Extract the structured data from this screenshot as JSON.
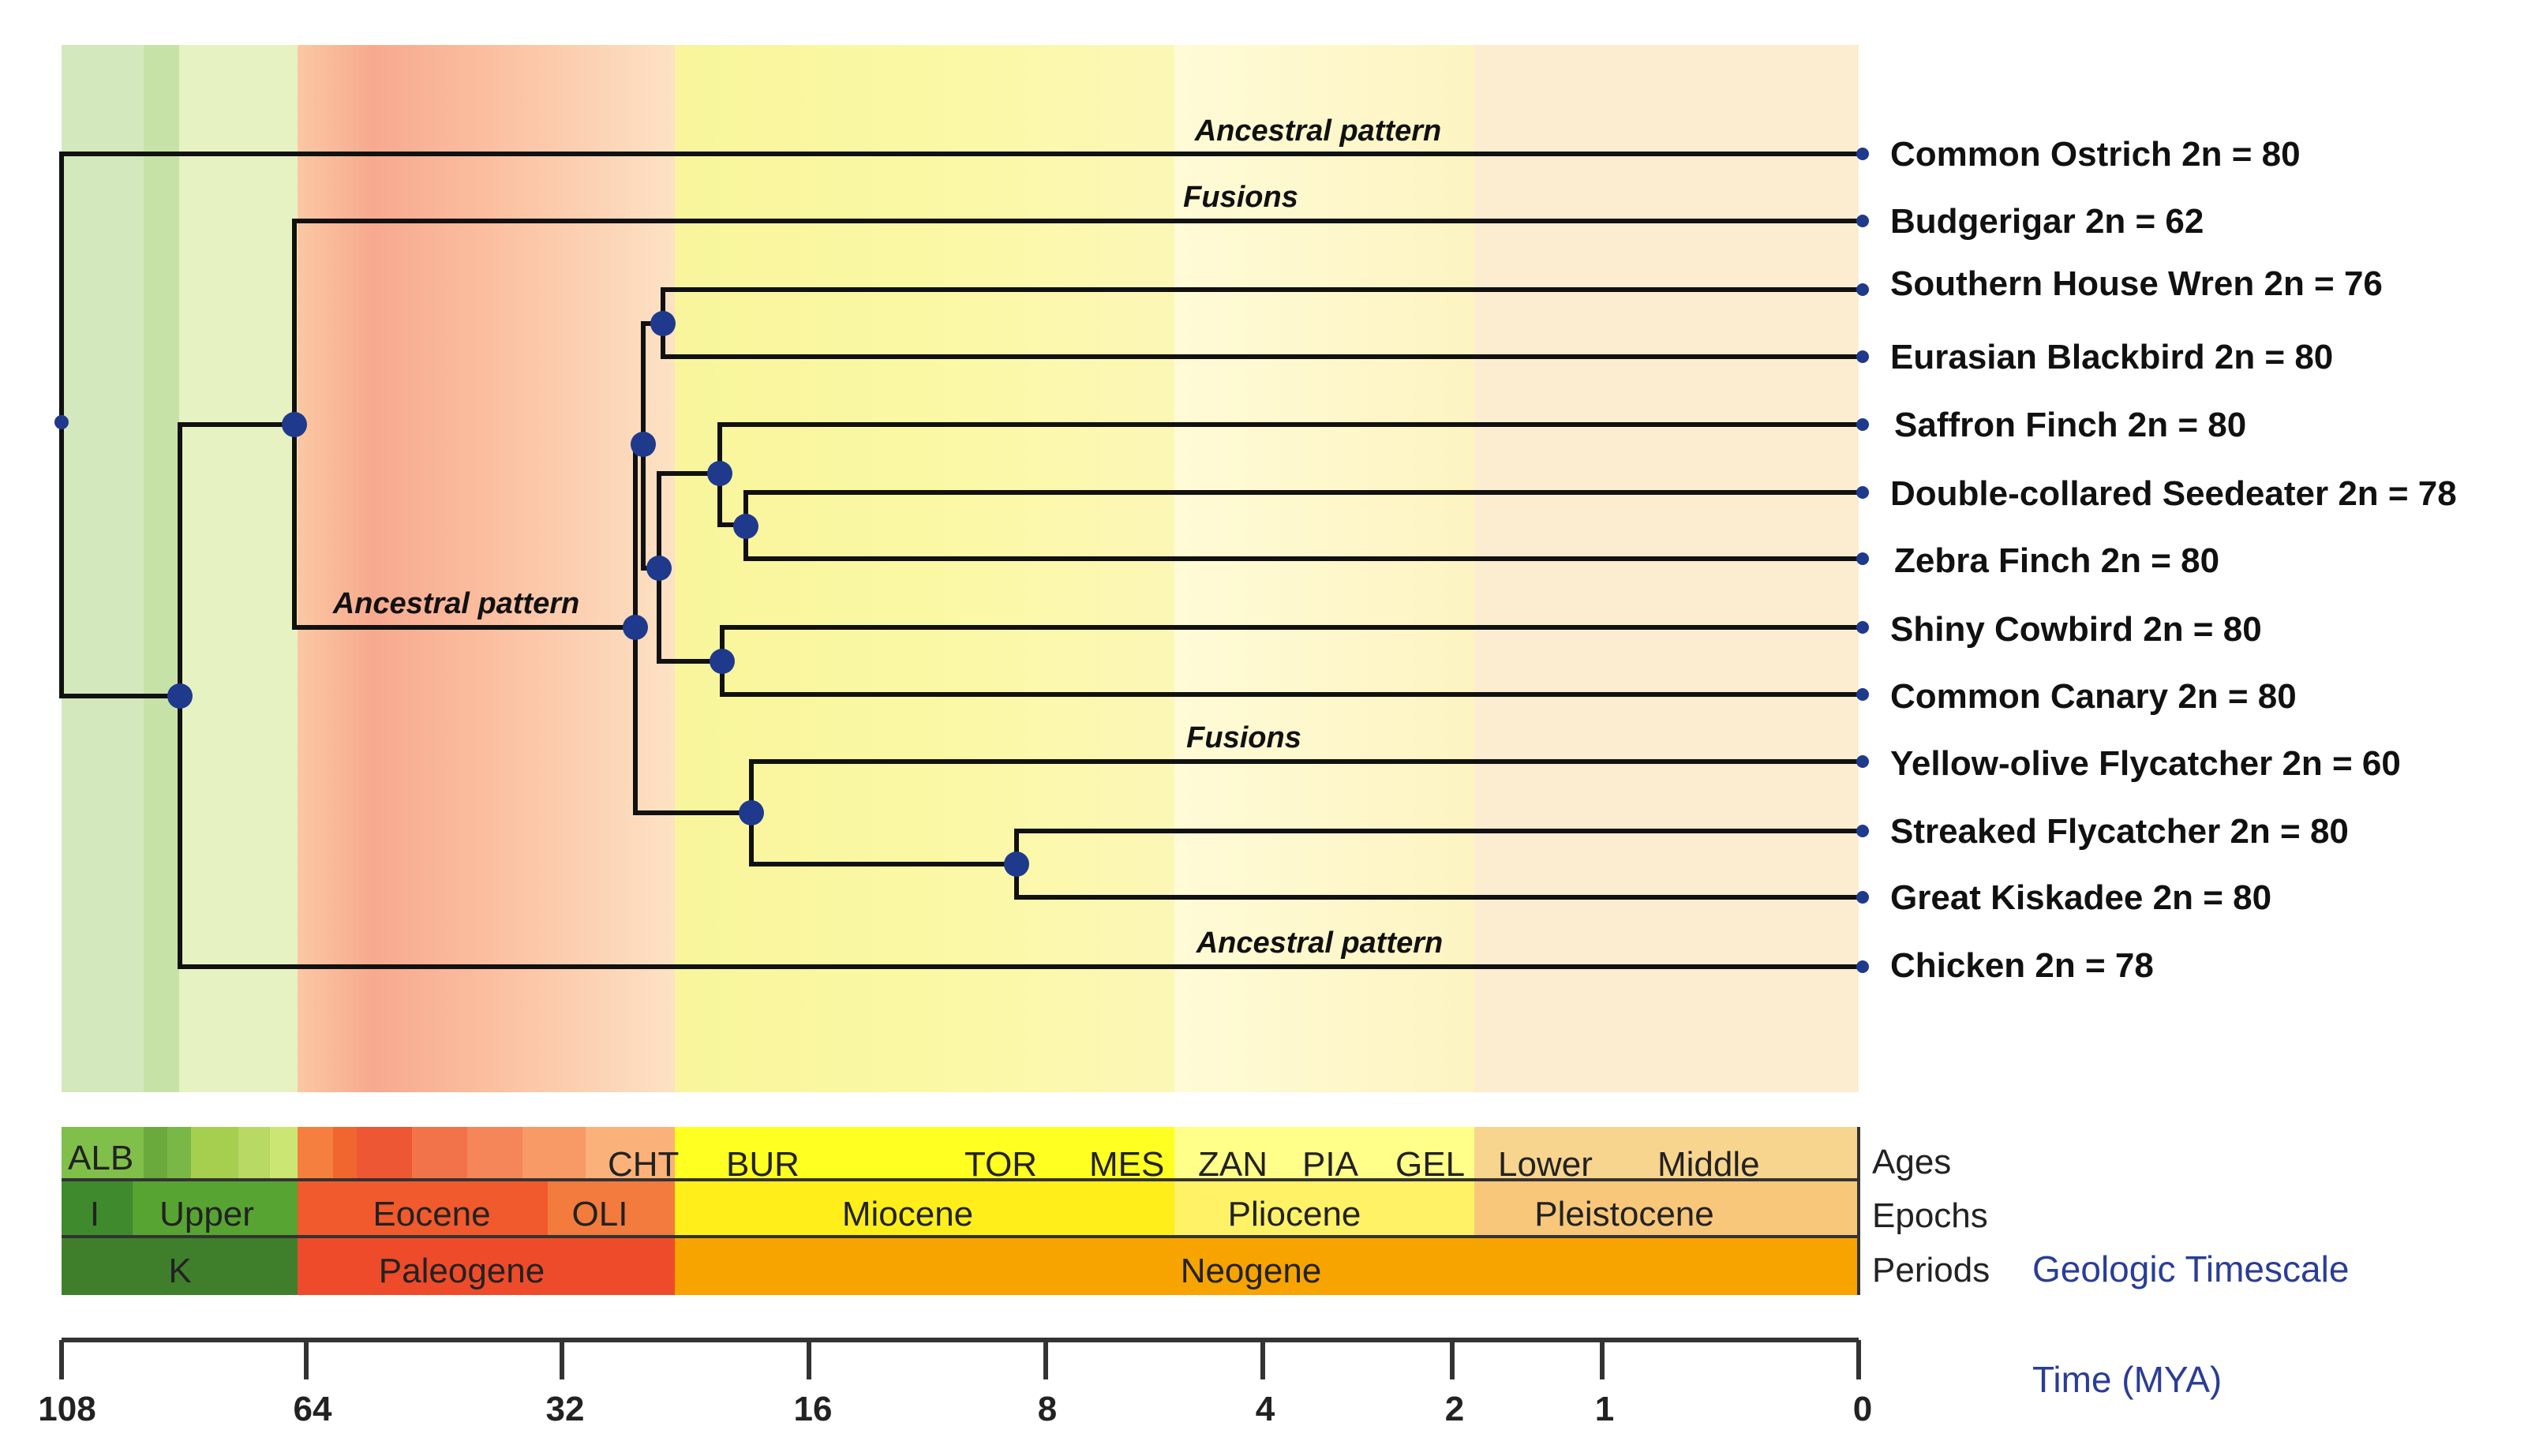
{
  "taxa": [
    {
      "name": "Common Ostrich",
      "chromosomes": "2n = 80"
    },
    {
      "name": "Budgerigar",
      "chromosomes": "2n = 62"
    },
    {
      "name": "Southern House Wren",
      "chromosomes": "2n = 76"
    },
    {
      "name": "Eurasian Blackbird",
      "chromosomes": "2n = 80"
    },
    {
      "name": "Saffron Finch",
      "chromosomes": "2n = 80"
    },
    {
      "name": "Double-collared Seedeater",
      "chromosomes": "2n = 78"
    },
    {
      "name": "Zebra Finch",
      "chromosomes": "2n = 80"
    },
    {
      "name": "Shiny Cowbird",
      "chromosomes": "2n = 80"
    },
    {
      "name": "Common Canary",
      "chromosomes": "2n = 80"
    },
    {
      "name": "Yellow-olive Flycatcher",
      "chromosomes": "2n = 60"
    },
    {
      "name": "Streaked Flycatcher",
      "chromosomes": "2n = 80"
    },
    {
      "name": "Great Kiskadee",
      "chromosomes": "2n = 80"
    },
    {
      "name": "Chicken",
      "chromosomes": "2n = 78"
    }
  ],
  "annotations": {
    "ostrich": "Ancestral pattern",
    "budgerigar": "Fusions",
    "passerines": "Ancestral pattern",
    "flycatcher": "Fusions",
    "chicken": "Ancestral pattern"
  },
  "timescale": {
    "title": "Geologic Timescale",
    "row_labels": {
      "ages": "Ages",
      "epochs": "Epochs",
      "periods": "Periods"
    },
    "ages": [
      "ALB",
      "CHT",
      "BUR",
      "TOR",
      "MES",
      "ZAN",
      "PIA",
      "GEL",
      "Lower",
      "Middle"
    ],
    "epochs": [
      "I",
      "Upper",
      "Eocene",
      "OLI",
      "Miocene",
      "Pliocene",
      "Pleistocene"
    ],
    "periods": [
      "K",
      "Paleogene",
      "Neogene"
    ]
  },
  "time_axis": {
    "label": "Time (MYA)",
    "ticks": [
      "108",
      "64",
      "32",
      "16",
      "8",
      "4",
      "2",
      "1",
      "0"
    ]
  },
  "colors": {
    "cretaceous": "#4f9a35",
    "paleogene": "#ee5a2e",
    "neogene": "#f7a300",
    "miocene": "#ffee1a",
    "pleistocene": "#f8c77a",
    "node": "#1f3a8c",
    "label_blue": "#2a3d96"
  }
}
